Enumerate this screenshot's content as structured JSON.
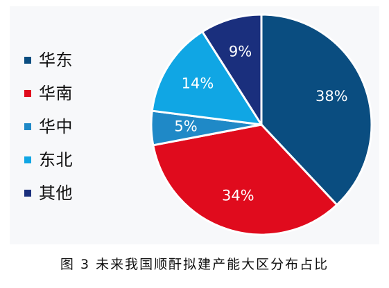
{
  "chart_data": {
    "type": "pie",
    "title": "图 3 未来我国顺酐拟建产能大区分布占比",
    "legend_position": "left",
    "categories": [
      "华东",
      "华南",
      "华中",
      "东北",
      "其他"
    ],
    "values": [
      38,
      34,
      5,
      14,
      9
    ],
    "value_labels": [
      "38%",
      "34%",
      "5%",
      "14%",
      "9%"
    ],
    "colors": [
      "#0a4d80",
      "#e00b1d",
      "#1f89c7",
      "#10a6e4",
      "#1a2f7d"
    ]
  }
}
